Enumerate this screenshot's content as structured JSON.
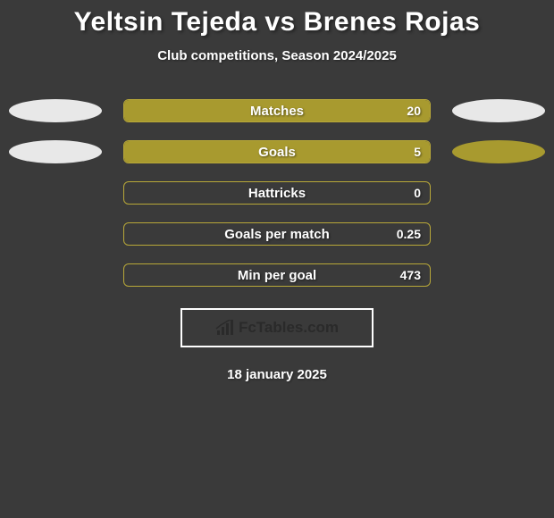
{
  "title": "Yeltsin Tejeda vs Brenes Rojas",
  "subtitle": "Club competitions, Season 2024/2025",
  "date": "18 january 2025",
  "logo_text": "FcTables.com",
  "colors": {
    "background": "#3a3a3a",
    "bar_border": "#b8a838",
    "bar_fill": "#a89a2f",
    "ellipse_light": "#e8e8e8",
    "ellipse_olive": "#a89a2f",
    "text": "#ffffff",
    "logo_text": "#2a2a2a"
  },
  "rows": [
    {
      "label": "Matches",
      "value": "20",
      "fill_pct": 100,
      "left_ellipse": "#e8e8e8",
      "right_ellipse": "#e8e8e8"
    },
    {
      "label": "Goals",
      "value": "5",
      "fill_pct": 100,
      "left_ellipse": "#e8e8e8",
      "right_ellipse": "#a89a2f"
    },
    {
      "label": "Hattricks",
      "value": "0",
      "fill_pct": 0,
      "left_ellipse": null,
      "right_ellipse": null
    },
    {
      "label": "Goals per match",
      "value": "0.25",
      "fill_pct": 0,
      "left_ellipse": null,
      "right_ellipse": null
    },
    {
      "label": "Min per goal",
      "value": "473",
      "fill_pct": 0,
      "left_ellipse": null,
      "right_ellipse": null
    }
  ]
}
